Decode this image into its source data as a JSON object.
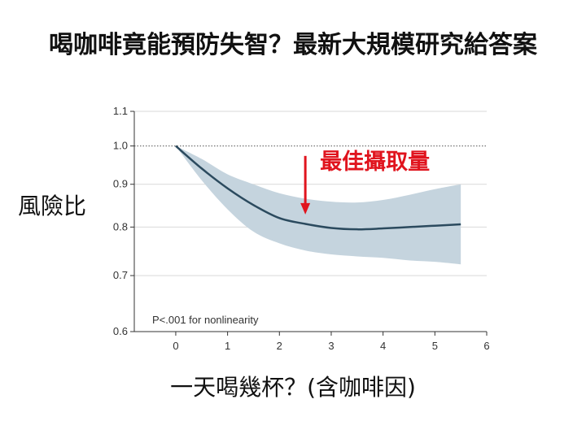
{
  "headline": "喝咖啡竟能預防失智？最新大規模研究給答案",
  "colors": {
    "band": "#c5d4de",
    "line": "#2b4a5e",
    "annotation": "#e0141e",
    "grid": "#d9d9d9"
  },
  "chart_data": {
    "type": "line",
    "title": "",
    "xlabel": "一天喝幾杯？(含咖啡因)",
    "ylabel": "風險比",
    "xlim": [
      -0.8,
      6
    ],
    "ylim": [
      0.6,
      1.1
    ],
    "y_scale": "log",
    "xticks": [
      0,
      1,
      2,
      3,
      4,
      5,
      6
    ],
    "yticks": [
      0.6,
      0.7,
      0.8,
      0.9,
      1.0,
      1.1
    ],
    "ytick_labels": [
      "0.6",
      "0.7",
      "0.8",
      "0.9",
      "1.0",
      "1.1"
    ],
    "xtick_labels": [
      "0",
      "1",
      "2",
      "3",
      "4",
      "5",
      "6"
    ],
    "reference_line": 1.0,
    "grid": "horizontal",
    "series": [
      {
        "x": [
          0,
          0.5,
          1,
          1.5,
          2,
          2.5,
          3,
          3.5,
          4,
          4.5,
          5,
          5.5
        ],
        "y": [
          1.0,
          0.94,
          0.89,
          0.85,
          0.82,
          0.807,
          0.798,
          0.795,
          0.797,
          0.8,
          0.803,
          0.806
        ],
        "lower": [
          1.0,
          0.91,
          0.84,
          0.79,
          0.765,
          0.75,
          0.742,
          0.738,
          0.735,
          0.73,
          0.727,
          0.722
        ],
        "upper": [
          1.0,
          0.965,
          0.925,
          0.9,
          0.878,
          0.865,
          0.858,
          0.856,
          0.862,
          0.874,
          0.888,
          0.9
        ]
      }
    ],
    "annotations": [
      {
        "text": "最佳攝取量",
        "x": 2.5,
        "y": 0.81
      },
      {
        "text": "P<.001 for nonlinearity"
      }
    ]
  }
}
